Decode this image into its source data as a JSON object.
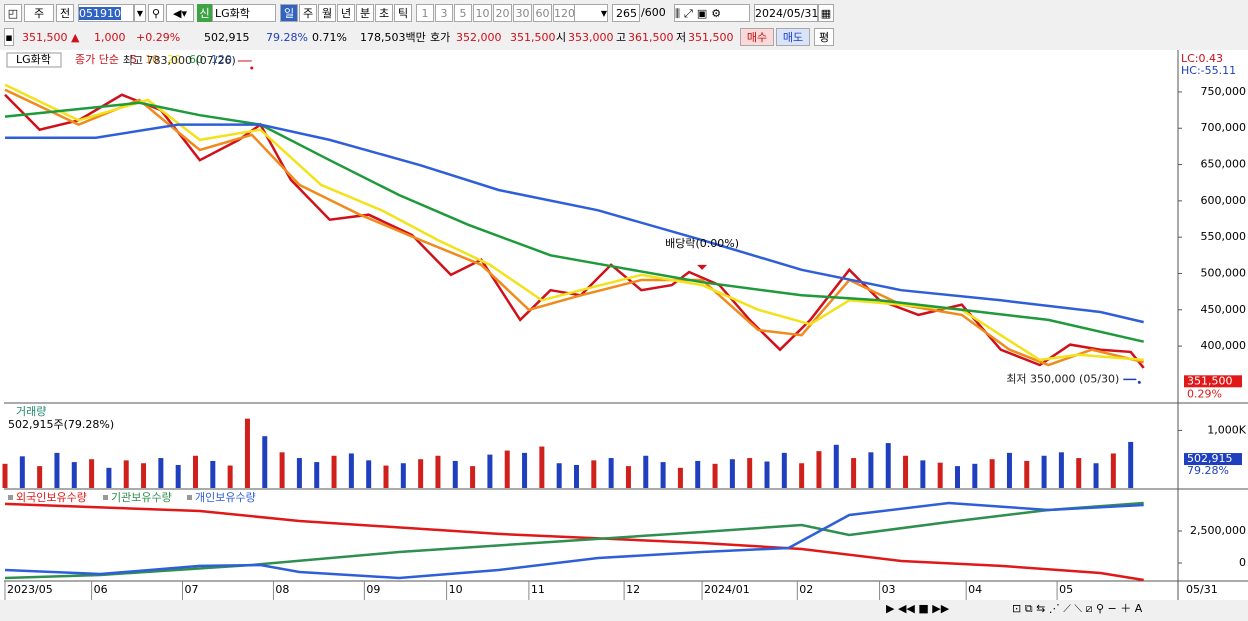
{
  "toolbar": {
    "period_type": "주",
    "prev": "전",
    "code": "051910",
    "badge": "신",
    "name": "LG화학",
    "periods": [
      "일",
      "주",
      "월",
      "년",
      "분",
      "초",
      "틱"
    ],
    "intervals": [
      "1",
      "3",
      "5",
      "10",
      "20",
      "30",
      "60",
      "120"
    ],
    "count": "265",
    "max": "/600",
    "date": "2024/05/31"
  },
  "quote": {
    "price": "351,500 ▲",
    "change": "1,000",
    "change_pct": "+0.29%",
    "volume": "502,915",
    "volume_ratio": "79.28%",
    "turnover": "0.71%",
    "amount": "178,503백만",
    "ask_label": "호가",
    "ask": "352,000",
    "bid": "351,500",
    "open_label": "시",
    "open": "353,000",
    "high_label": "고",
    "high": "361,500",
    "low_label": "저",
    "low": "351,500",
    "buy": "매수",
    "sell": "매도",
    "avg": "평"
  },
  "chart": {
    "xlim": [
      0,
      264
    ],
    "xticks": [
      {
        "value": 0,
        "label": "2023/05"
      },
      {
        "value": 20,
        "label": "06"
      },
      {
        "value": 41,
        "label": "07"
      },
      {
        "value": 62,
        "label": "08"
      },
      {
        "value": 83,
        "label": "09"
      },
      {
        "value": 102,
        "label": "10"
      },
      {
        "value": 121,
        "label": "11"
      },
      {
        "value": 143,
        "label": "12"
      },
      {
        "value": 161,
        "label": "2024/01"
      },
      {
        "value": 183,
        "label": "02"
      },
      {
        "value": 202,
        "label": "03"
      },
      {
        "value": 222,
        "label": "04"
      },
      {
        "value": 243,
        "label": "05"
      }
    ],
    "end_label": "05/31",
    "price": {
      "type": "line",
      "name": "LG화학",
      "legend_title": "종가 단순",
      "lc": "LC:0.43",
      "hc": "HC:-55.11",
      "ylim": [
        323000,
        805000
      ],
      "yticks": [
        {
          "value": 400000,
          "label": "400,000"
        },
        {
          "value": 450000,
          "label": "450,000"
        },
        {
          "value": 500000,
          "label": "500,000"
        },
        {
          "value": 550000,
          "label": "550,000"
        },
        {
          "value": 600000,
          "label": "600,000"
        },
        {
          "value": 650000,
          "label": "650,000"
        },
        {
          "value": 700000,
          "label": "700,000"
        },
        {
          "value": 750000,
          "label": "750,000"
        }
      ],
      "series": [
        {
          "name": "5",
          "color": "#d0101a",
          "x": [
            0,
            8,
            17,
            27,
            36,
            45,
            54,
            59,
            66,
            75,
            84,
            94,
            103,
            110,
            119,
            126,
            133,
            140,
            147,
            154,
            158,
            165,
            172,
            179,
            186,
            195,
            202,
            211,
            221,
            230,
            239,
            246,
            253,
            260,
            263
          ],
          "values": [
            746000,
            698000,
            711000,
            746000,
            725000,
            656000,
            684000,
            705000,
            629000,
            574000,
            581000,
            553000,
            498000,
            519000,
            436000,
            477000,
            470000,
            512000,
            477000,
            484000,
            502000,
            484000,
            436000,
            395000,
            436000,
            505000,
            463000,
            443000,
            457000,
            395000,
            374000,
            402000,
            395000,
            392000,
            370000
          ]
        },
        {
          "name": "10",
          "color": "#f08a1c",
          "x": [
            0,
            17,
            31,
            45,
            57,
            68,
            82,
            96,
            110,
            121,
            133,
            147,
            161,
            174,
            184,
            195,
            207,
            221,
            232,
            241,
            251,
            263
          ],
          "values": [
            753000,
            705000,
            739000,
            670000,
            691000,
            622000,
            581000,
            546000,
            512000,
            450000,
            470000,
            491000,
            491000,
            422000,
            415000,
            491000,
            457000,
            443000,
            395000,
            374000,
            395000,
            378000
          ]
        },
        {
          "name": "20",
          "color": "#f2e21a",
          "x": [
            0,
            17,
            33,
            45,
            59,
            73,
            87,
            100,
            112,
            124,
            133,
            147,
            161,
            174,
            186,
            195,
            207,
            221,
            230,
            239,
            248,
            263
          ],
          "values": [
            760000,
            711000,
            739000,
            684000,
            698000,
            622000,
            587000,
            546000,
            512000,
            463000,
            477000,
            498000,
            484000,
            450000,
            430000,
            463000,
            457000,
            450000,
            415000,
            381000,
            388000,
            381000
          ]
        },
        {
          "name": "60",
          "color": "#1e9a3a",
          "x": [
            0,
            31,
            45,
            59,
            75,
            91,
            107,
            126,
            142,
            161,
            184,
            202,
            221,
            241,
            263
          ],
          "values": [
            716000,
            735000,
            718000,
            705000,
            656000,
            608000,
            567000,
            525000,
            508000,
            488000,
            470000,
            463000,
            450000,
            436000,
            406000
          ]
        },
        {
          "name": "120",
          "color": "#2f5fd8",
          "x": [
            0,
            21,
            40,
            59,
            75,
            96,
            114,
            137,
            161,
            184,
            207,
            230,
            253,
            263
          ],
          "values": [
            687000,
            687000,
            705000,
            705000,
            684000,
            649000,
            615000,
            587000,
            546000,
            505000,
            477000,
            463000,
            447000,
            433000
          ]
        }
      ],
      "high": {
        "label": "최고 783,000 (07/26)",
        "x": 57,
        "value": 783000
      },
      "low": {
        "label": "최저 350,000 (05/30)",
        "x": 262,
        "value": 350000
      },
      "dividend": {
        "label": "배당락(0.00%)",
        "x": 161,
        "value": 505000
      },
      "last": {
        "value": 351500,
        "label": "351,500"
      },
      "last_pct": "0.29%"
    },
    "volume": {
      "type": "bar",
      "title": "거래량",
      "subtitle": "502,915주(79.28%)",
      "ylim": [
        0,
        1424000
      ],
      "yticks": [
        {
          "value": 1000000,
          "label": "1,000K"
        }
      ],
      "x": [
        0,
        4,
        8,
        12,
        16,
        20,
        24,
        28,
        32,
        36,
        40,
        44,
        48,
        52,
        56,
        60,
        64,
        68,
        72,
        76,
        80,
        84,
        88,
        92,
        96,
        100,
        104,
        108,
        112,
        116,
        120,
        124,
        128,
        132,
        136,
        140,
        144,
        148,
        152,
        156,
        160,
        164,
        168,
        172,
        176,
        180,
        184,
        188,
        192,
        196,
        200,
        204,
        208,
        212,
        216,
        220,
        224,
        228,
        232,
        236,
        240,
        244,
        248,
        252,
        256,
        260
      ],
      "values": [
        420000,
        550000,
        380000,
        610000,
        450000,
        500000,
        350000,
        480000,
        430000,
        520000,
        400000,
        560000,
        470000,
        390000,
        1204000,
        900000,
        620000,
        520000,
        450000,
        560000,
        600000,
        480000,
        390000,
        430000,
        500000,
        560000,
        470000,
        380000,
        580000,
        650000,
        610000,
        720000,
        430000,
        400000,
        480000,
        520000,
        380000,
        560000,
        450000,
        350000,
        470000,
        420000,
        500000,
        520000,
        460000,
        610000,
        430000,
        640000,
        750000,
        520000,
        620000,
        780000,
        560000,
        480000,
        440000,
        380000,
        420000,
        500000,
        610000,
        470000,
        560000,
        620000,
        520000,
        430000,
        600000,
        800000
      ],
      "colors": [
        "#d0201c",
        "#1f3fbf",
        "#d0201c",
        "#1f3fbf",
        "#1f3fbf",
        "#d0201c",
        "#1f3fbf",
        "#d0201c",
        "#d0201c",
        "#1f3fbf",
        "#1f3fbf",
        "#d0201c",
        "#1f3fbf",
        "#d0201c",
        "#d0201c",
        "#1f3fbf",
        "#d0201c",
        "#1f3fbf",
        "#1f3fbf",
        "#d0201c",
        "#1f3fbf",
        "#1f3fbf",
        "#d0201c",
        "#1f3fbf",
        "#d0201c",
        "#d0201c",
        "#1f3fbf",
        "#d0201c",
        "#1f3fbf",
        "#d0201c",
        "#1f3fbf",
        "#d0201c",
        "#1f3fbf",
        "#1f3fbf",
        "#d0201c",
        "#1f3fbf",
        "#d0201c",
        "#1f3fbf",
        "#1f3fbf",
        "#d0201c",
        "#1f3fbf",
        "#d0201c",
        "#1f3fbf",
        "#d0201c",
        "#1f3fbf",
        "#1f3fbf",
        "#d0201c",
        "#d0201c",
        "#1f3fbf",
        "#d0201c",
        "#1f3fbf",
        "#1f3fbf",
        "#d0201c",
        "#1f3fbf",
        "#d0201c",
        "#1f3fbf",
        "#1f3fbf",
        "#d0201c",
        "#1f3fbf",
        "#d0201c",
        "#1f3fbf",
        "#1f3fbf",
        "#d0201c",
        "#1f3fbf",
        "#d0201c",
        "#1f3fbf"
      ],
      "last": {
        "value": 502915,
        "label": "502,915"
      },
      "last_pct": "79.28%"
    },
    "holdings": {
      "type": "line",
      "ylim": [
        -1328000,
        5703000
      ],
      "yticks": [
        0,
        {
          "value": 2500000,
          "label": "2,500,000"
        }
      ],
      "series": [
        {
          "name": "외국인보유수량",
          "color": "#e01818",
          "x": [
            0,
            45,
            68,
            114,
            161,
            184,
            207,
            230,
            253,
            263
          ],
          "values": [
            4620000,
            4060000,
            3280000,
            2270000,
            1560000,
            1090000,
            160000,
            -230000,
            -780000,
            -1330000
          ]
        },
        {
          "name": "기관보유수량",
          "color": "#2e8f4e",
          "x": [
            0,
            22,
            57,
            91,
            126,
            161,
            184,
            195,
            218,
            241,
            263
          ],
          "values": [
            -1170000,
            -940000,
            -160000,
            860000,
            1640000,
            2420000,
            2970000,
            2190000,
            3200000,
            4140000,
            4690000
          ]
        },
        {
          "name": "개인보유수량",
          "color": "#2f5fd8",
          "x": [
            0,
            22,
            45,
            59,
            68,
            91,
            114,
            137,
            161,
            181,
            195,
            218,
            241,
            263
          ],
          "values": [
            -550000,
            -860000,
            -230000,
            -160000,
            -700000,
            -1170000,
            -550000,
            390000,
            860000,
            1170000,
            3750000,
            4690000,
            4140000,
            4530000
          ]
        }
      ]
    }
  }
}
